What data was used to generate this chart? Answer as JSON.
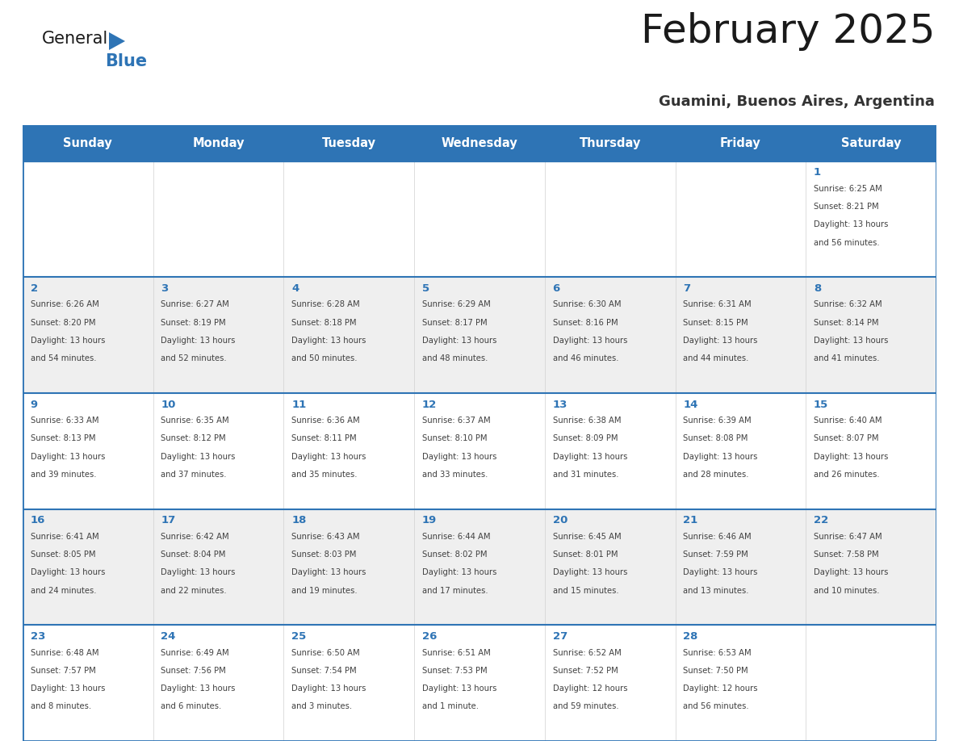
{
  "title": "February 2025",
  "subtitle": "Guamini, Buenos Aires, Argentina",
  "header_bg": "#2E74B5",
  "header_text_color": "#FFFFFF",
  "day_names": [
    "Sunday",
    "Monday",
    "Tuesday",
    "Wednesday",
    "Thursday",
    "Friday",
    "Saturday"
  ],
  "alt_row_bg": "#EFEFEF",
  "white_bg": "#FFFFFF",
  "cell_border_color": "#2E74B5",
  "day_number_color": "#2E74B5",
  "info_text_color": "#404040",
  "title_color": "#1A1A1A",
  "subtitle_color": "#333333",
  "logo_general_color": "#1A1A1A",
  "logo_blue_color": "#2E74B5",
  "calendar_data": [
    [
      null,
      null,
      null,
      null,
      null,
      null,
      {
        "day": 1,
        "sunrise": "6:25 AM",
        "sunset": "8:21 PM",
        "daylight": "13 hours and 56 minutes."
      }
    ],
    [
      {
        "day": 2,
        "sunrise": "6:26 AM",
        "sunset": "8:20 PM",
        "daylight": "13 hours and 54 minutes."
      },
      {
        "day": 3,
        "sunrise": "6:27 AM",
        "sunset": "8:19 PM",
        "daylight": "13 hours and 52 minutes."
      },
      {
        "day": 4,
        "sunrise": "6:28 AM",
        "sunset": "8:18 PM",
        "daylight": "13 hours and 50 minutes."
      },
      {
        "day": 5,
        "sunrise": "6:29 AM",
        "sunset": "8:17 PM",
        "daylight": "13 hours and 48 minutes."
      },
      {
        "day": 6,
        "sunrise": "6:30 AM",
        "sunset": "8:16 PM",
        "daylight": "13 hours and 46 minutes."
      },
      {
        "day": 7,
        "sunrise": "6:31 AM",
        "sunset": "8:15 PM",
        "daylight": "13 hours and 44 minutes."
      },
      {
        "day": 8,
        "sunrise": "6:32 AM",
        "sunset": "8:14 PM",
        "daylight": "13 hours and 41 minutes."
      }
    ],
    [
      {
        "day": 9,
        "sunrise": "6:33 AM",
        "sunset": "8:13 PM",
        "daylight": "13 hours and 39 minutes."
      },
      {
        "day": 10,
        "sunrise": "6:35 AM",
        "sunset": "8:12 PM",
        "daylight": "13 hours and 37 minutes."
      },
      {
        "day": 11,
        "sunrise": "6:36 AM",
        "sunset": "8:11 PM",
        "daylight": "13 hours and 35 minutes."
      },
      {
        "day": 12,
        "sunrise": "6:37 AM",
        "sunset": "8:10 PM",
        "daylight": "13 hours and 33 minutes."
      },
      {
        "day": 13,
        "sunrise": "6:38 AM",
        "sunset": "8:09 PM",
        "daylight": "13 hours and 31 minutes."
      },
      {
        "day": 14,
        "sunrise": "6:39 AM",
        "sunset": "8:08 PM",
        "daylight": "13 hours and 28 minutes."
      },
      {
        "day": 15,
        "sunrise": "6:40 AM",
        "sunset": "8:07 PM",
        "daylight": "13 hours and 26 minutes."
      }
    ],
    [
      {
        "day": 16,
        "sunrise": "6:41 AM",
        "sunset": "8:05 PM",
        "daylight": "13 hours and 24 minutes."
      },
      {
        "day": 17,
        "sunrise": "6:42 AM",
        "sunset": "8:04 PM",
        "daylight": "13 hours and 22 minutes."
      },
      {
        "day": 18,
        "sunrise": "6:43 AM",
        "sunset": "8:03 PM",
        "daylight": "13 hours and 19 minutes."
      },
      {
        "day": 19,
        "sunrise": "6:44 AM",
        "sunset": "8:02 PM",
        "daylight": "13 hours and 17 minutes."
      },
      {
        "day": 20,
        "sunrise": "6:45 AM",
        "sunset": "8:01 PM",
        "daylight": "13 hours and 15 minutes."
      },
      {
        "day": 21,
        "sunrise": "6:46 AM",
        "sunset": "7:59 PM",
        "daylight": "13 hours and 13 minutes."
      },
      {
        "day": 22,
        "sunrise": "6:47 AM",
        "sunset": "7:58 PM",
        "daylight": "13 hours and 10 minutes."
      }
    ],
    [
      {
        "day": 23,
        "sunrise": "6:48 AM",
        "sunset": "7:57 PM",
        "daylight": "13 hours and 8 minutes."
      },
      {
        "day": 24,
        "sunrise": "6:49 AM",
        "sunset": "7:56 PM",
        "daylight": "13 hours and 6 minutes."
      },
      {
        "day": 25,
        "sunrise": "6:50 AM",
        "sunset": "7:54 PM",
        "daylight": "13 hours and 3 minutes."
      },
      {
        "day": 26,
        "sunrise": "6:51 AM",
        "sunset": "7:53 PM",
        "daylight": "13 hours and 1 minute."
      },
      {
        "day": 27,
        "sunrise": "6:52 AM",
        "sunset": "7:52 PM",
        "daylight": "12 hours and 59 minutes."
      },
      {
        "day": 28,
        "sunrise": "6:53 AM",
        "sunset": "7:50 PM",
        "daylight": "12 hours and 56 minutes."
      },
      null
    ]
  ]
}
